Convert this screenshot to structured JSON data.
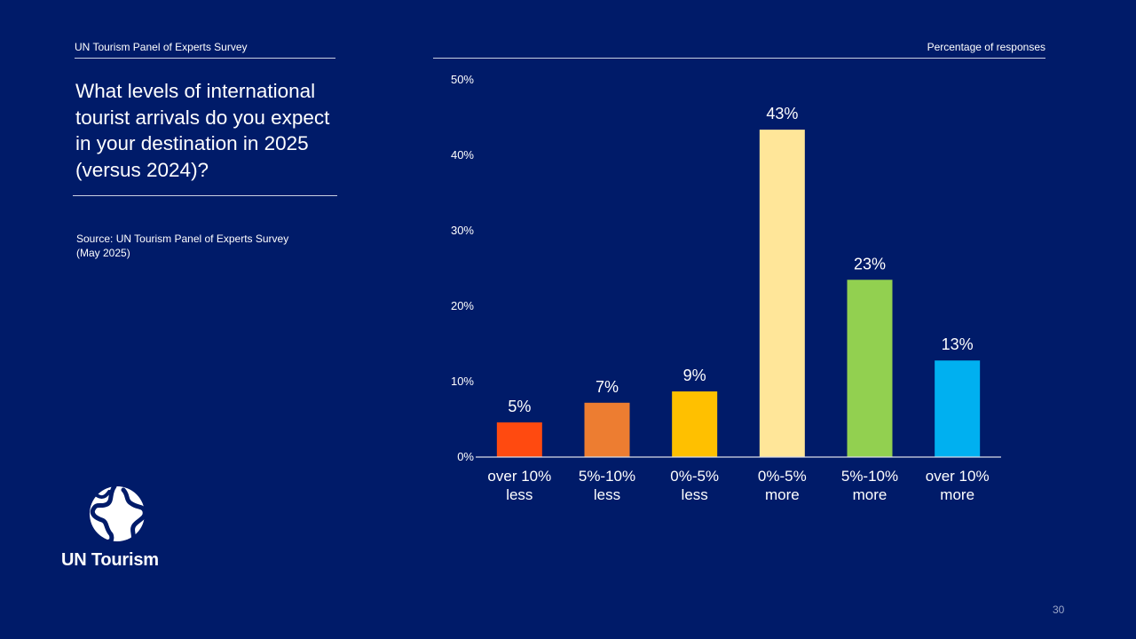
{
  "header": {
    "left_label": "UN Tourism Panel of Experts Survey",
    "right_label": "Percentage of responses"
  },
  "question": "What levels of international tourist arrivals do you expect in your destination in 2025 (versus 2024)?",
  "source": {
    "line1": "Source: UN Tourism Panel of Experts Survey",
    "line2": "(May 2025)"
  },
  "logo": {
    "text": "UN Tourism"
  },
  "page_number": "30",
  "chart_data": {
    "type": "bar",
    "categories": [
      [
        "over 10%",
        "less"
      ],
      [
        "5%-10%",
        "less"
      ],
      [
        "0%-5%",
        "less"
      ],
      [
        "0%-5%",
        "more"
      ],
      [
        "5%-10%",
        "more"
      ],
      [
        "over 10%",
        "more"
      ]
    ],
    "values": [
      4.6,
      7.2,
      8.7,
      43.4,
      23.5,
      12.8
    ],
    "data_labels": [
      "5%",
      "7%",
      "9%",
      "43%",
      "23%",
      "13%"
    ],
    "colors": [
      "#ff4a10",
      "#ed7d31",
      "#ffc000",
      "#ffe699",
      "#92d050",
      "#00b0f0"
    ],
    "ylim": [
      0,
      50
    ],
    "yticks": [
      0,
      10,
      20,
      30,
      40,
      50
    ],
    "ytick_labels": [
      "0%",
      "10%",
      "20%",
      "30%",
      "40%",
      "50%"
    ],
    "grid": false,
    "title": "",
    "xlabel": "",
    "ylabel": ""
  }
}
